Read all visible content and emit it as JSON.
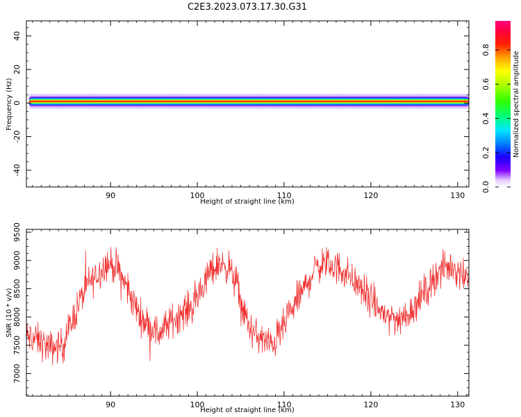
{
  "title": "C2E3.2023.073.17.30.G31",
  "chart_data": [
    {
      "type": "heatmap",
      "title": "",
      "xlabel": "Height of straight line (km)",
      "ylabel": "Frequency (Hz)",
      "xlim": [
        80.3,
        131.3
      ],
      "ylim": [
        -50,
        49
      ],
      "x_ticks": [
        90,
        100,
        110,
        120,
        130
      ],
      "y_ticks": [
        -40,
        -20,
        0,
        20,
        40
      ],
      "x_tick_labels": [
        "90",
        "100",
        "110",
        "120",
        "130"
      ],
      "y_tick_labels": [
        "-40",
        "-20",
        "0",
        "20",
        "40"
      ],
      "signal_band": {
        "center_hz": 1.0,
        "half_width_hz": 1.8,
        "halo_hz": 4.5,
        "peak_amplitude": 0.9
      },
      "colorbar": {
        "label": "Normalized spectral amplitude",
        "range": [
          0,
          0.97
        ],
        "ticks": [
          0.0,
          0.2,
          0.4,
          0.6,
          0.8
        ],
        "tick_labels": [
          "0.0",
          "0.2",
          "0.4",
          "0.6",
          "0.8"
        ],
        "colormap": "gist_ncar-like (white-violet-blue-cyan-green-yellow-orange-red-magenta)"
      },
      "grid": false,
      "legend": "none"
    },
    {
      "type": "line",
      "title": "",
      "xlabel": "Height of straight line (km)",
      "ylabel": "SNR (10 * v/v)",
      "xlim": [
        80.3,
        131.3
      ],
      "ylim": [
        6600,
        9550
      ],
      "x_ticks": [
        90,
        100,
        110,
        120,
        130
      ],
      "y_ticks": [
        7000,
        7500,
        8000,
        8500,
        9000,
        9500
      ],
      "x_tick_labels": [
        "90",
        "100",
        "110",
        "120",
        "130"
      ],
      "y_tick_labels": [
        "7000",
        "7500",
        "8000",
        "8500",
        "9000",
        "9500"
      ],
      "line_color": "#f03030",
      "series": [
        {
          "trend_x": [
            80.3,
            81.5,
            83,
            84.5,
            85.5,
            86.5,
            87.5,
            88.5,
            89.5,
            90.5,
            91.5,
            92.5,
            93.5,
            94.5,
            95.5,
            96.5,
            97.5,
            98.5,
            99.5,
            100.5,
            101.5,
            102.5,
            103.5,
            104.5,
            105.5,
            106.5,
            107.5,
            108.5,
            109.5,
            110.5,
            111.5,
            112.5,
            113.5,
            114.5,
            115.5,
            116.5,
            117.5,
            118.5,
            119.5,
            120.5,
            121.5,
            122.5,
            123.5,
            124.5,
            125.5,
            126.5,
            127.5,
            128.5,
            129.5,
            130.5,
            131.3
          ],
          "trend_y": [
            7650,
            7600,
            7450,
            7500,
            7900,
            8300,
            8600,
            8750,
            8950,
            8900,
            8650,
            8300,
            8000,
            7850,
            7700,
            7850,
            8000,
            8100,
            8200,
            8500,
            8800,
            8950,
            8900,
            8600,
            8000,
            7700,
            7600,
            7500,
            7700,
            8000,
            8300,
            8550,
            8850,
            8950,
            8900,
            8850,
            8750,
            8550,
            8400,
            8200,
            8050,
            8000,
            7950,
            8100,
            8300,
            8500,
            8750,
            8850,
            8900,
            8800,
            8700
          ],
          "noise_amplitude": 220,
          "samples": 1100
        }
      ],
      "grid": false,
      "legend": "none"
    }
  ]
}
